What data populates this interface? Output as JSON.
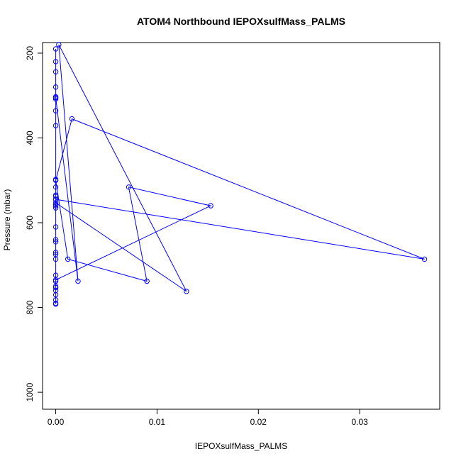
{
  "chart_data": {
    "type": "line",
    "title": "ATOM4 Northbound IEPOXsulfMass_PALMS",
    "xlabel": "IEPOXsulfMass_PALMS",
    "ylabel": "Pressure (mbar)",
    "xlim": [
      -0.0013,
      0.0379
    ],
    "ylim": [
      1040,
      175
    ],
    "y_reversed": true,
    "x_ticks": [
      0.0,
      0.01,
      0.02,
      0.03
    ],
    "x_tick_labels": [
      "0.00",
      "0.01",
      "0.02",
      "0.03"
    ],
    "y_ticks": [
      200,
      400,
      600,
      800,
      1000
    ],
    "y_tick_labels": [
      "200",
      "400",
      "600",
      "800",
      "1000"
    ],
    "grid": false,
    "series": [
      {
        "color": "#0000ff",
        "marker": "open-circle",
        "points": [
          [
            0.0,
            792
          ],
          [
            0.0,
            790
          ],
          [
            0.0,
            782
          ],
          [
            0.0,
            770
          ],
          [
            0.0,
            760
          ],
          [
            0.0,
            753
          ],
          [
            0.0,
            750
          ],
          [
            0.0,
            738
          ],
          [
            0.0,
            724
          ],
          [
            0.0,
            686
          ],
          [
            0.0,
            675
          ],
          [
            0.0,
            670
          ],
          [
            0.0,
            645
          ],
          [
            0.0,
            640
          ],
          [
            0.0,
            610
          ],
          [
            0.0,
            565
          ],
          [
            0.0,
            560
          ],
          [
            0.0,
            557
          ],
          [
            0.0,
            545
          ],
          [
            0.0,
            538
          ],
          [
            0.0,
            535
          ],
          [
            0.0,
            516
          ],
          [
            0.0,
            498
          ],
          [
            0.0,
            371
          ],
          [
            0.0,
            336
          ],
          [
            0.0,
            308
          ],
          [
            0.0,
            303
          ],
          [
            0.0,
            280
          ],
          [
            0.0,
            244
          ],
          [
            0.0,
            220
          ],
          [
            0.0,
            735
          ],
          [
            0.0153,
            560
          ],
          [
            0.0072,
            516
          ],
          [
            0.009,
            738
          ],
          [
            0.0012,
            686
          ],
          [
            0.0,
            500
          ],
          [
            0.0016,
            355
          ],
          [
            0.0364,
            686
          ],
          [
            0.0,
            545
          ],
          [
            0.0,
            553
          ],
          [
            0.0129,
            762
          ],
          [
            0.0003,
            180
          ],
          [
            0.0022,
            738
          ],
          [
            0.0,
            305
          ],
          [
            0.0,
            190
          ]
        ]
      }
    ]
  }
}
